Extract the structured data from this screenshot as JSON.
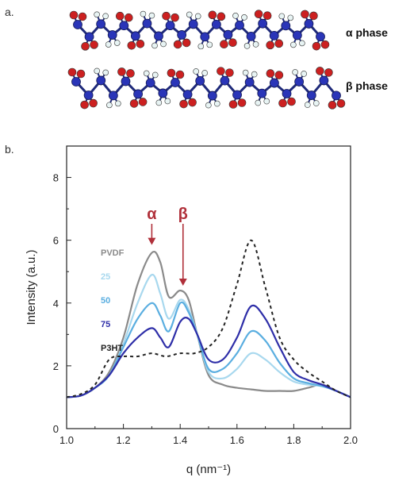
{
  "panel_a": {
    "label": "a.",
    "alpha_label": "α phase",
    "beta_label": "β phase",
    "atom_colors": {
      "carbon": "#2a35b8",
      "fluorine": "#cc2020",
      "hydrogen": "#e8f4f4",
      "bond": "#1f2a7a"
    }
  },
  "panel_b": {
    "label": "b."
  },
  "chart_data": {
    "type": "line",
    "xlabel": "q (nm⁻¹)",
    "ylabel": "Intensity (a.u.)",
    "xlim": [
      1.0,
      2.0
    ],
    "ylim": [
      0,
      9
    ],
    "xticks": [
      "1.0",
      "1.2",
      "1.4",
      "1.6",
      "1.8",
      "2.0"
    ],
    "yticks": [
      "0",
      "2",
      "4",
      "6",
      "8"
    ],
    "grid": false,
    "legend_position": "left",
    "annotations": [
      {
        "text": "α",
        "x": 1.3,
        "arrow_to_y": 5.8,
        "color": "#b0303a"
      },
      {
        "text": "β",
        "x": 1.41,
        "arrow_to_y": 4.5,
        "color": "#b0303a"
      }
    ],
    "series": [
      {
        "name": "PVDF",
        "color": "#8a8a8a",
        "style": "solid",
        "x": [
          1.0,
          1.05,
          1.1,
          1.15,
          1.2,
          1.25,
          1.3,
          1.33,
          1.36,
          1.4,
          1.43,
          1.46,
          1.5,
          1.55,
          1.6,
          1.65,
          1.7,
          1.75,
          1.8,
          1.85,
          1.9,
          1.95,
          2.0
        ],
        "y": [
          1.0,
          1.05,
          1.3,
          1.8,
          2.9,
          4.6,
          5.6,
          5.3,
          4.2,
          4.4,
          4.1,
          3.0,
          1.7,
          1.4,
          1.3,
          1.25,
          1.2,
          1.2,
          1.2,
          1.3,
          1.4,
          1.2,
          1.0
        ]
      },
      {
        "name": "25",
        "color": "#a8d8ee",
        "style": "solid",
        "x": [
          1.0,
          1.05,
          1.1,
          1.15,
          1.2,
          1.25,
          1.3,
          1.33,
          1.36,
          1.4,
          1.43,
          1.46,
          1.5,
          1.55,
          1.6,
          1.65,
          1.7,
          1.75,
          1.8,
          1.85,
          1.9,
          1.95,
          2.0
        ],
        "y": [
          1.0,
          1.05,
          1.3,
          1.7,
          2.7,
          4.0,
          4.9,
          4.3,
          3.5,
          4.1,
          3.8,
          3.0,
          1.8,
          1.6,
          1.9,
          2.4,
          2.2,
          1.8,
          1.5,
          1.4,
          1.35,
          1.2,
          1.0
        ]
      },
      {
        "name": "50",
        "color": "#5aaee0",
        "style": "solid",
        "x": [
          1.0,
          1.05,
          1.1,
          1.15,
          1.2,
          1.25,
          1.3,
          1.33,
          1.36,
          1.4,
          1.43,
          1.46,
          1.5,
          1.55,
          1.6,
          1.65,
          1.7,
          1.75,
          1.8,
          1.85,
          1.9,
          1.95,
          2.0
        ],
        "y": [
          1.0,
          1.05,
          1.3,
          1.7,
          2.6,
          3.5,
          4.0,
          3.6,
          3.1,
          4.0,
          3.7,
          3.0,
          1.9,
          1.9,
          2.4,
          3.1,
          2.8,
          2.1,
          1.6,
          1.45,
          1.35,
          1.2,
          1.0
        ]
      },
      {
        "name": "75",
        "color": "#2e2ea8",
        "style": "solid",
        "x": [
          1.0,
          1.05,
          1.1,
          1.15,
          1.2,
          1.25,
          1.3,
          1.33,
          1.36,
          1.4,
          1.43,
          1.46,
          1.5,
          1.55,
          1.6,
          1.65,
          1.7,
          1.75,
          1.8,
          1.85,
          1.9,
          1.95,
          2.0
        ],
        "y": [
          1.0,
          1.05,
          1.3,
          1.7,
          2.4,
          2.9,
          3.2,
          2.9,
          2.6,
          3.4,
          3.5,
          3.0,
          2.2,
          2.2,
          2.9,
          3.9,
          3.5,
          2.6,
          1.8,
          1.55,
          1.4,
          1.2,
          1.0
        ]
      },
      {
        "name": "P3HT",
        "color": "#222222",
        "style": "dashed",
        "x": [
          1.0,
          1.05,
          1.1,
          1.15,
          1.2,
          1.25,
          1.3,
          1.35,
          1.4,
          1.45,
          1.5,
          1.55,
          1.6,
          1.65,
          1.7,
          1.75,
          1.8,
          1.85,
          1.9,
          1.95,
          2.0
        ],
        "y": [
          1.0,
          1.1,
          1.4,
          2.2,
          2.3,
          2.3,
          2.4,
          2.3,
          2.4,
          2.4,
          2.6,
          3.2,
          4.6,
          6.0,
          4.5,
          2.9,
          2.2,
          1.8,
          1.5,
          1.2,
          1.0
        ]
      }
    ]
  }
}
